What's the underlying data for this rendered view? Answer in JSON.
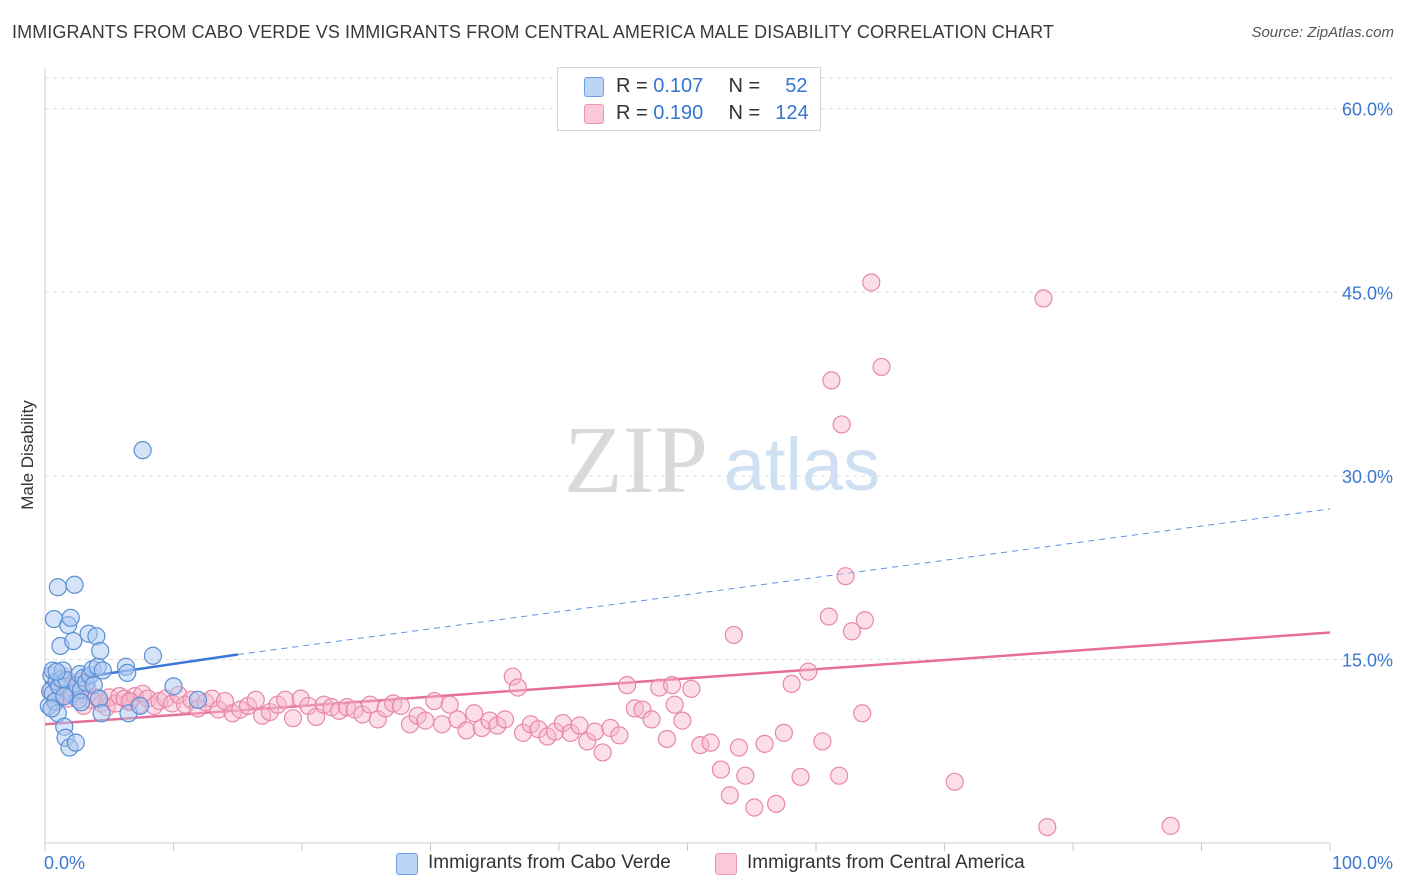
{
  "header": {
    "title": "IMMIGRANTS FROM CABO VERDE VS IMMIGRANTS FROM CENTRAL AMERICA MALE DISABILITY CORRELATION CHART",
    "source": "Source: ZipAtlas.com"
  },
  "watermark": {
    "zip": "ZIP",
    "atlas": "atlas"
  },
  "legend": {
    "r_label": "R =",
    "n_label": "N =",
    "rows": [
      {
        "r": "0.107",
        "n": "52"
      },
      {
        "r": "0.190",
        "n": "124"
      }
    ]
  },
  "colors": {
    "blue_fill": "#a9c8f0",
    "blue_stroke": "#5b8fd6",
    "blue_line": "#3878d8",
    "pink_fill": "#f7b6cb",
    "pink_stroke": "#e888a8",
    "pink_line": "#e66f98",
    "axis_label": "#3d78d0",
    "grid": "#dddddd"
  },
  "chart_data": {
    "type": "scatter",
    "xlabel": "",
    "ylabel": "Male Disability",
    "xlim": [
      0,
      100
    ],
    "ylim": [
      0,
      63
    ],
    "x_tick_labels": [
      "0.0%",
      "100.0%"
    ],
    "y_ticks": [
      15,
      30,
      45,
      60
    ],
    "y_tick_labels": [
      "15.0%",
      "30.0%",
      "45.0%",
      "60.0%"
    ],
    "grid": true,
    "legend_position": "top-center",
    "series": [
      {
        "name": "Immigrants from Cabo Verde",
        "color": "blue",
        "R": 0.107,
        "N": 52,
        "trend": {
          "x": [
            0,
            15
          ],
          "y": [
            13.1,
            15.4
          ],
          "dashed_extension_to": [
            100,
            27.3
          ]
        },
        "points": [
          [
            0.3,
            11.2
          ],
          [
            0.4,
            12.4
          ],
          [
            0.5,
            13.7
          ],
          [
            0.6,
            14.1
          ],
          [
            0.6,
            12.2
          ],
          [
            0.7,
            18.3
          ],
          [
            0.8,
            11.6
          ],
          [
            0.9,
            13.2
          ],
          [
            1.0,
            20.9
          ],
          [
            1.0,
            10.6
          ],
          [
            1.1,
            12.8
          ],
          [
            1.2,
            16.1
          ],
          [
            1.3,
            13.4
          ],
          [
            1.4,
            14.1
          ],
          [
            1.5,
            9.5
          ],
          [
            1.6,
            8.6
          ],
          [
            1.7,
            13.3
          ],
          [
            1.8,
            17.8
          ],
          [
            1.9,
            7.8
          ],
          [
            2.0,
            18.4
          ],
          [
            2.1,
            12.2
          ],
          [
            2.2,
            16.5
          ],
          [
            2.3,
            21.1
          ],
          [
            2.4,
            8.2
          ],
          [
            2.5,
            12.9
          ],
          [
            2.6,
            11.7
          ],
          [
            2.7,
            13.8
          ],
          [
            2.8,
            12.5
          ],
          [
            3.0,
            13.5
          ],
          [
            3.2,
            13.1
          ],
          [
            3.4,
            17.1
          ],
          [
            3.5,
            13.7
          ],
          [
            3.7,
            14.2
          ],
          [
            3.8,
            12.9
          ],
          [
            4.0,
            16.9
          ],
          [
            4.1,
            14.4
          ],
          [
            4.2,
            11.8
          ],
          [
            4.3,
            15.7
          ],
          [
            4.4,
            10.6
          ],
          [
            4.5,
            14.1
          ],
          [
            6.3,
            14.4
          ],
          [
            6.4,
            13.9
          ],
          [
            6.5,
            10.6
          ],
          [
            7.4,
            11.2
          ],
          [
            7.6,
            32.1
          ],
          [
            8.4,
            15.3
          ],
          [
            10.0,
            12.8
          ],
          [
            11.9,
            11.7
          ],
          [
            0.5,
            11.0
          ],
          [
            1.5,
            12.0
          ],
          [
            2.8,
            11.5
          ],
          [
            0.9,
            14.0
          ]
        ]
      },
      {
        "name": "Immigrants from Central America",
        "color": "pink",
        "R": 0.19,
        "N": 124,
        "trend": {
          "x": [
            0,
            100
          ],
          "y": [
            9.7,
            17.2
          ]
        },
        "points": [
          [
            0.5,
            12.5
          ],
          [
            0.8,
            11.5
          ],
          [
            1.0,
            13.0
          ],
          [
            1.2,
            12.0
          ],
          [
            1.5,
            13.6
          ],
          [
            1.8,
            11.8
          ],
          [
            2.0,
            12.8
          ],
          [
            2.2,
            12.4
          ],
          [
            2.5,
            12.0
          ],
          [
            2.8,
            13.2
          ],
          [
            3.0,
            11.2
          ],
          [
            3.3,
            12.6
          ],
          [
            3.6,
            11.7
          ],
          [
            4.0,
            11.9
          ],
          [
            4.4,
            11.4
          ],
          [
            4.8,
            11.1
          ],
          [
            5.0,
            11.9
          ],
          [
            5.5,
            11.4
          ],
          [
            5.8,
            12.0
          ],
          [
            6.2,
            11.8
          ],
          [
            6.6,
            11.5
          ],
          [
            7.0,
            12.0
          ],
          [
            7.3,
            11.3
          ],
          [
            7.6,
            12.2
          ],
          [
            8.0,
            11.8
          ],
          [
            8.5,
            11.2
          ],
          [
            8.9,
            11.6
          ],
          [
            9.4,
            11.8
          ],
          [
            9.9,
            11.4
          ],
          [
            10.4,
            12.1
          ],
          [
            10.9,
            11.3
          ],
          [
            11.4,
            11.7
          ],
          [
            11.9,
            11.0
          ],
          [
            12.5,
            11.5
          ],
          [
            13.0,
            11.8
          ],
          [
            13.5,
            10.9
          ],
          [
            14.0,
            11.6
          ],
          [
            14.6,
            10.6
          ],
          [
            15.2,
            10.9
          ],
          [
            15.8,
            11.2
          ],
          [
            16.4,
            11.7
          ],
          [
            16.9,
            10.4
          ],
          [
            17.5,
            10.7
          ],
          [
            18.1,
            11.3
          ],
          [
            18.7,
            11.7
          ],
          [
            19.3,
            10.2
          ],
          [
            19.9,
            11.8
          ],
          [
            20.5,
            11.2
          ],
          [
            21.1,
            10.3
          ],
          [
            21.7,
            11.3
          ],
          [
            22.3,
            11.1
          ],
          [
            22.9,
            10.8
          ],
          [
            23.5,
            11.1
          ],
          [
            24.1,
            10.9
          ],
          [
            24.7,
            10.5
          ],
          [
            25.3,
            11.3
          ],
          [
            25.9,
            10.1
          ],
          [
            26.5,
            11.0
          ],
          [
            27.1,
            11.4
          ],
          [
            27.7,
            11.2
          ],
          [
            28.4,
            9.7
          ],
          [
            29.0,
            10.4
          ],
          [
            29.6,
            10.0
          ],
          [
            30.3,
            11.6
          ],
          [
            30.9,
            9.7
          ],
          [
            31.5,
            11.3
          ],
          [
            32.1,
            10.1
          ],
          [
            32.8,
            9.2
          ],
          [
            33.4,
            10.6
          ],
          [
            34.0,
            9.4
          ],
          [
            34.6,
            10.0
          ],
          [
            35.2,
            9.6
          ],
          [
            35.8,
            10.1
          ],
          [
            36.4,
            13.6
          ],
          [
            36.8,
            12.7
          ],
          [
            37.2,
            9.0
          ],
          [
            37.8,
            9.7
          ],
          [
            38.4,
            9.3
          ],
          [
            39.1,
            8.7
          ],
          [
            39.7,
            9.1
          ],
          [
            40.3,
            9.8
          ],
          [
            40.9,
            9.0
          ],
          [
            41.6,
            9.6
          ],
          [
            42.2,
            8.3
          ],
          [
            42.8,
            9.1
          ],
          [
            43.4,
            7.4
          ],
          [
            44.0,
            9.4
          ],
          [
            44.7,
            8.8
          ],
          [
            45.3,
            12.9
          ],
          [
            45.9,
            11.0
          ],
          [
            46.5,
            10.9
          ],
          [
            47.2,
            10.1
          ],
          [
            47.8,
            12.7
          ],
          [
            48.4,
            8.5
          ],
          [
            49.0,
            11.3
          ],
          [
            49.6,
            10.0
          ],
          [
            48.8,
            12.9
          ],
          [
            50.3,
            12.6
          ],
          [
            51.0,
            8.0
          ],
          [
            51.8,
            8.2
          ],
          [
            52.6,
            6.0
          ],
          [
            53.3,
            3.9
          ],
          [
            54.0,
            7.8
          ],
          [
            54.5,
            5.5
          ],
          [
            53.6,
            17.0
          ],
          [
            55.2,
            2.9
          ],
          [
            56.0,
            8.1
          ],
          [
            56.9,
            3.2
          ],
          [
            58.1,
            13.0
          ],
          [
            57.5,
            9.0
          ],
          [
            58.8,
            5.4
          ],
          [
            59.4,
            14.0
          ],
          [
            60.5,
            8.3
          ],
          [
            61.0,
            18.5
          ],
          [
            61.2,
            37.8
          ],
          [
            61.8,
            5.5
          ],
          [
            62.8,
            17.3
          ],
          [
            62.3,
            21.8
          ],
          [
            62.0,
            34.2
          ],
          [
            63.6,
            10.6
          ],
          [
            63.8,
            18.2
          ],
          [
            64.3,
            45.8
          ],
          [
            65.1,
            38.9
          ],
          [
            70.8,
            5.0
          ],
          [
            77.7,
            44.5
          ],
          [
            78.0,
            1.3
          ],
          [
            87.6,
            1.4
          ],
          [
            6.6,
            11.6
          ]
        ]
      }
    ]
  }
}
